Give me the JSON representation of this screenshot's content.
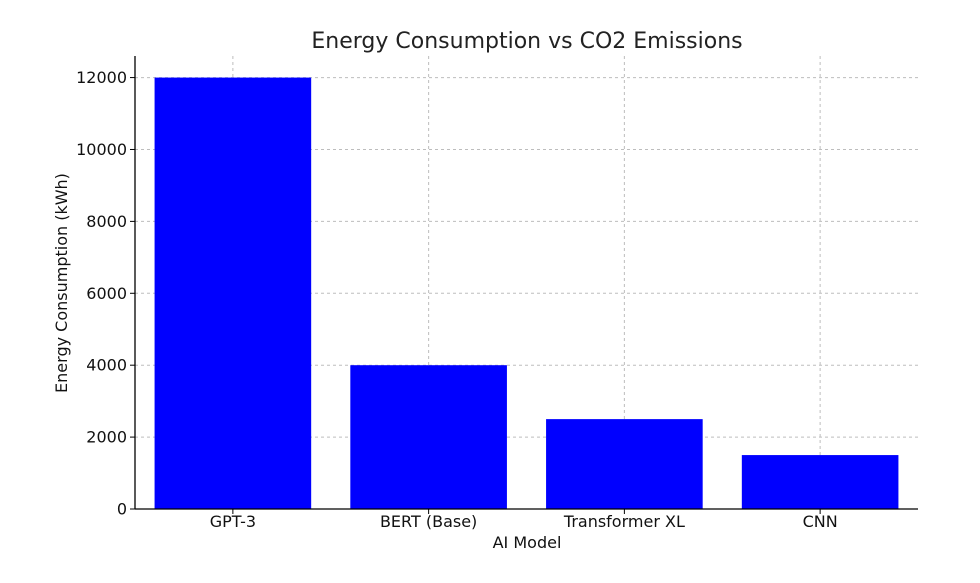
{
  "chart_data": {
    "type": "bar",
    "title": "Energy Consumption vs CO2 Emissions",
    "xlabel": "AI Model",
    "ylabel": "Energy Consumption (kWh)",
    "categories": [
      "GPT-3",
      "BERT (Base)",
      "Transformer XL",
      "CNN"
    ],
    "values": [
      12000,
      4000,
      2500,
      1500
    ],
    "ylim": [
      0,
      12600
    ],
    "yticks": [
      0,
      2000,
      4000,
      6000,
      8000,
      10000,
      12000
    ],
    "grid": true,
    "bar_color": "#0000ff"
  }
}
